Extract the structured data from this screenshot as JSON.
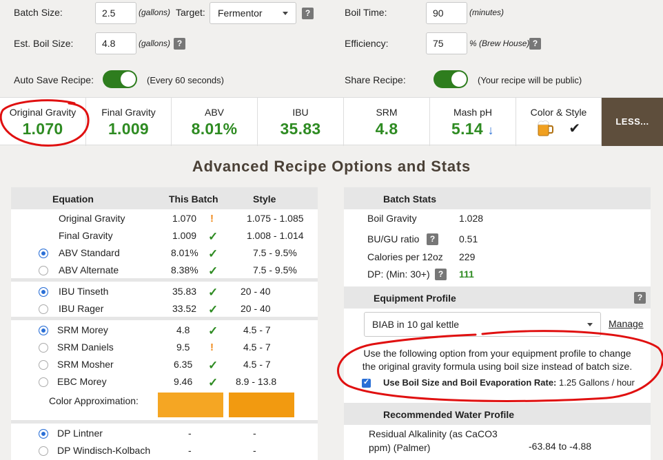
{
  "settings": {
    "batch_size": {
      "label": "Batch Size:",
      "value": "2.5",
      "unit": "(gallons)"
    },
    "target": {
      "label": "Target:",
      "value": "Fermentor"
    },
    "boil_time": {
      "label": "Boil Time:",
      "value": "90",
      "unit": "(minutes)"
    },
    "est_boil_size": {
      "label": "Est. Boil Size:",
      "value": "4.8",
      "unit": "(gallons)"
    },
    "efficiency": {
      "label": "Efficiency:",
      "value": "75",
      "unit": "% (Brew House)"
    },
    "auto_save": {
      "label": "Auto Save Recipe:",
      "note": "(Every 60 seconds)"
    },
    "share": {
      "label": "Share Recipe:",
      "note": "(Your recipe will be public)"
    },
    "help": "?"
  },
  "stats": [
    {
      "title": "Original Gravity",
      "value": "1.070"
    },
    {
      "title": "Final Gravity",
      "value": "1.009"
    },
    {
      "title": "ABV",
      "value": "8.01%"
    },
    {
      "title": "IBU",
      "value": "35.83"
    },
    {
      "title": "SRM",
      "value": "4.8"
    },
    {
      "title": "Mash pH",
      "value": "5.14",
      "arrow": "↓"
    },
    {
      "title": "Color & Style",
      "check": "✔"
    }
  ],
  "less_label": "LESS...",
  "section_title": "Advanced Recipe Options and Stats",
  "equation_table": {
    "headers": {
      "equation": "Equation",
      "batch": "This Batch",
      "style": "Style"
    },
    "rows": [
      {
        "name": "Original Gravity",
        "batch": "1.070",
        "status": "!",
        "style": "1.075 - 1.085"
      },
      {
        "name": "Final Gravity",
        "batch": "1.009",
        "status": "✓",
        "style": "1.008 - 1.014"
      },
      {
        "name": "ABV Standard",
        "batch": "8.01%",
        "status": "✓",
        "style": "7.5 - 9.5%"
      },
      {
        "name": "ABV Alternate",
        "batch": "8.38%",
        "status": "✓",
        "style": "7.5 - 9.5%"
      },
      {
        "name": "IBU Tinseth",
        "batch": "35.83",
        "status": "✓",
        "style": "20 - 40"
      },
      {
        "name": "IBU Rager",
        "batch": "33.52",
        "status": "✓",
        "style": "20 - 40"
      },
      {
        "name": "SRM Morey",
        "batch": "4.8",
        "status": "✓",
        "style": "4.5 - 7"
      },
      {
        "name": "SRM Daniels",
        "batch": "9.5",
        "status": "!",
        "style": "4.5 - 7"
      },
      {
        "name": "SRM Mosher",
        "batch": "6.35",
        "status": "✓",
        "style": "4.5 - 7"
      },
      {
        "name": "EBC Morey",
        "batch": "9.46",
        "status": "✓",
        "style": "8.9 - 13.8"
      },
      {
        "name": "DP Lintner",
        "batch": "-",
        "style": "-"
      },
      {
        "name": "DP Windisch-Kolbach",
        "batch": "-",
        "style": "-"
      }
    ],
    "color_approx_label": "Color Approximation:",
    "batch_color": "#f5a623",
    "style_color": "#f29a10"
  },
  "batch_stats": {
    "header": "Batch Stats",
    "rows": [
      {
        "label": "Boil Gravity",
        "value": "1.028"
      },
      {
        "label": "BU/GU ratio",
        "value": "0.51"
      },
      {
        "label": "Calories per 12oz",
        "value": "229"
      },
      {
        "label": "DP: (Min: 30+)",
        "value": "111"
      }
    ]
  },
  "equipment": {
    "header": "Equipment Profile",
    "selected": "BIAB in 10 gal kettle",
    "manage_label": "Manage",
    "note_line1": "Use the following option from your equipment profile to change",
    "note_line2": "the original gravity formula using boil size instead of batch size.",
    "option_label": "Use Boil Size and Boil Evaporation Rate:",
    "option_value": "1.25 Gallons / hour"
  },
  "water": {
    "header": "Recommended Water Profile",
    "row_label_1": "Residual Alkalinity (as CaCO3",
    "row_label_2": "ppm) (Palmer)",
    "row_value": "-63.84 to -4.88"
  },
  "colors": {
    "accent_green": "#2e8b22",
    "toggle_green": "#2e7d1e",
    "less_bg": "#5e4e3c",
    "annotation_red": "#e01010"
  }
}
